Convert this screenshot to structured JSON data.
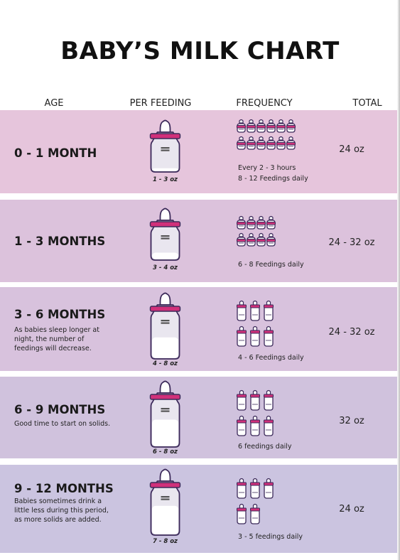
{
  "title": "BABY’S MILK CHART",
  "columns": {
    "age": "AGE",
    "per_feeding": "PER FEEDING",
    "frequency": "FREQUENCY",
    "total": "TOTAL"
  },
  "rows": [
    {
      "age": "0 - 1 MONTH",
      "note": "",
      "per_feeding": "1 - 3 oz",
      "bottle_fill": 0.15,
      "bottle_size": "small",
      "icon_type": "small-bottle",
      "icon_rows": [
        6,
        6
      ],
      "frequency_lines": [
        "Every 2 - 3 hours",
        "8 - 12 Feedings daily"
      ],
      "total": "24 oz"
    },
    {
      "age": "1 - 3 MONTHS",
      "note": "",
      "per_feeding": "3 - 4 oz",
      "bottle_fill": 0.3,
      "bottle_size": "small",
      "icon_type": "small-bottle",
      "icon_rows": [
        4,
        4
      ],
      "frequency_lines": [
        "6 - 8 Feedings daily"
      ],
      "total": "24 - 32 oz"
    },
    {
      "age": "3 - 6 MONTHS",
      "note": "As babies sleep longer at night, the number of feedings will decrease.",
      "per_feeding": "4 - 8 oz",
      "bottle_fill": 0.55,
      "bottle_size": "large",
      "icon_type": "tall-bottle",
      "icon_rows": [
        3,
        3
      ],
      "frequency_lines": [
        "4 - 6 Feedings daily"
      ],
      "total": "24 - 32 oz"
    },
    {
      "age": "6 - 9 MONTHS",
      "note": "Good time to start on solids.",
      "per_feeding": "6 - 8 oz",
      "bottle_fill": 0.7,
      "bottle_size": "large",
      "icon_type": "tall-bottle",
      "icon_rows": [
        3,
        3
      ],
      "frequency_lines": [
        "6 feedings daily"
      ],
      "total": "32 oz"
    },
    {
      "age": "9 - 12 MONTHS",
      "note": "Babies sometimes drink a little less during this period, as more solids are added.",
      "per_feeding": "7 - 8 oz",
      "bottle_fill": 0.75,
      "bottle_size": "large",
      "icon_type": "tall-bottle",
      "icon_rows": [
        3,
        2
      ],
      "frequency_lines": [
        "3 - 5 feedings daily"
      ],
      "total": "24 oz"
    }
  ],
  "colors": {
    "accent": "#d0307a",
    "outline": "#3c2a5a",
    "milk": "#ffffff"
  }
}
